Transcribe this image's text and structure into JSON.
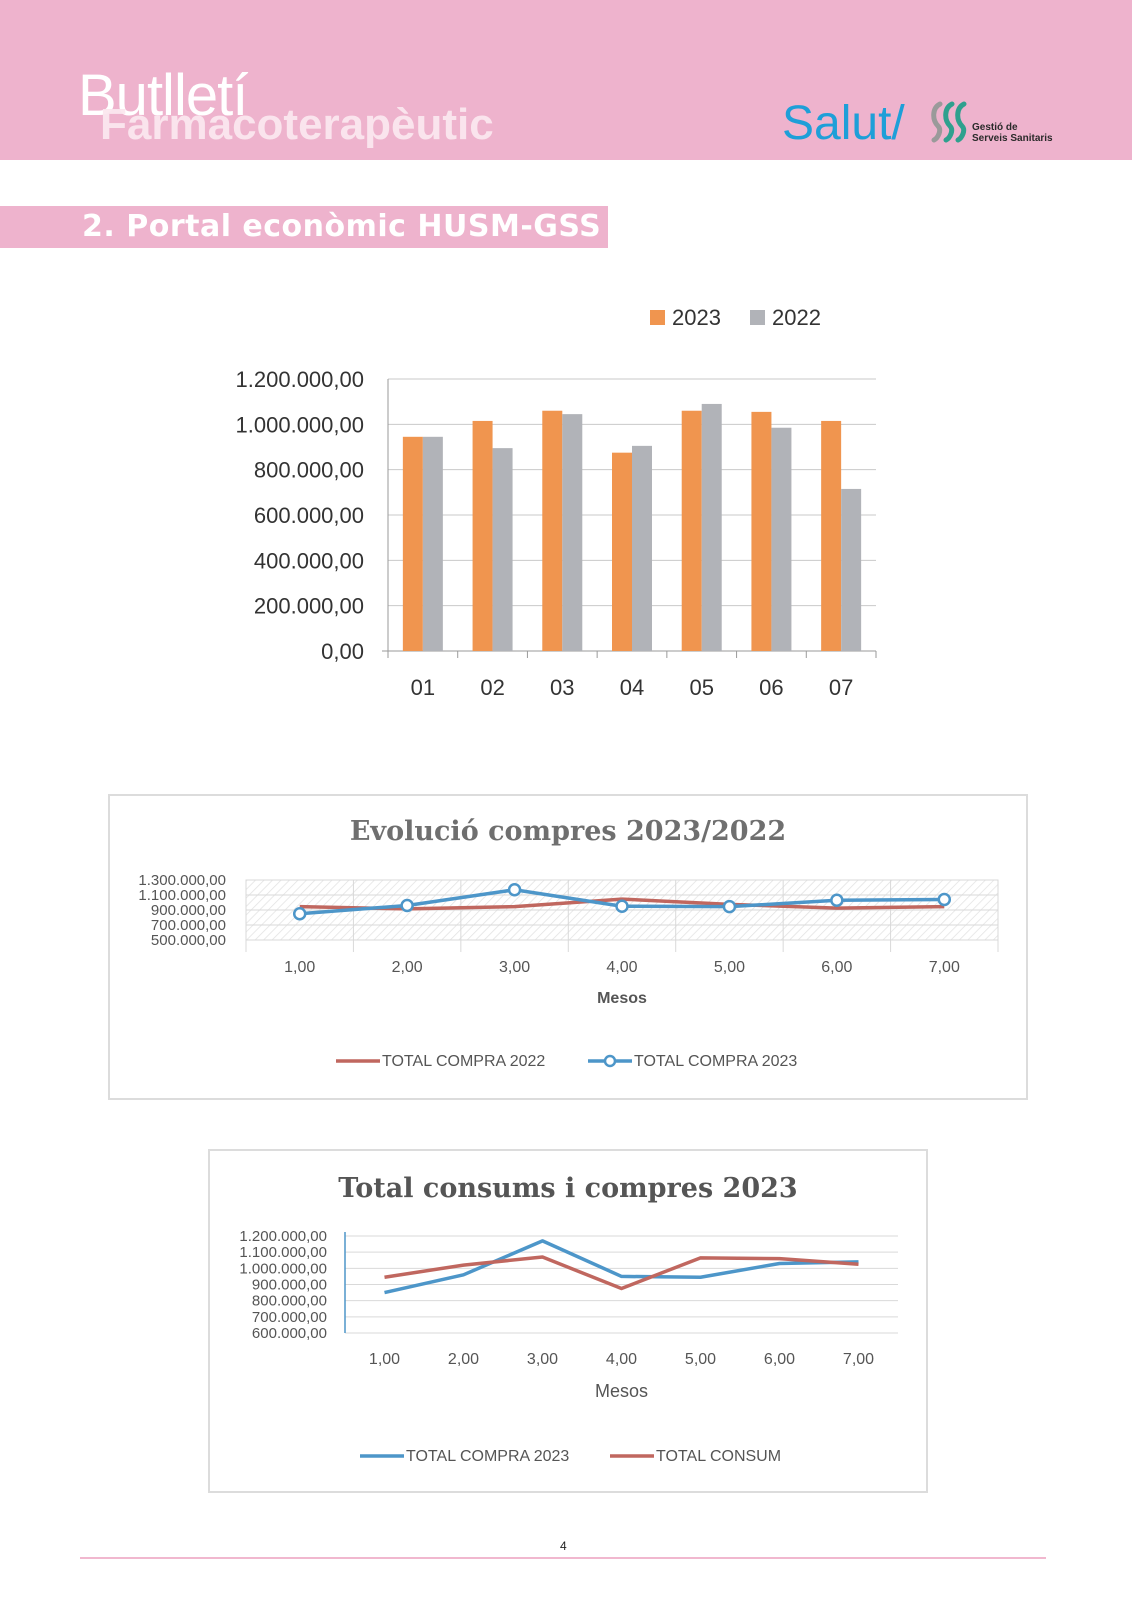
{
  "header": {
    "title_line1": "Butlletí",
    "title_line2": "Farmacoterapèutic",
    "logo": {
      "brand": "Salut/",
      "org_line1": "Gestió de",
      "org_line2": "Serveis Sanitaris",
      "mark_icon": "gss-logo-icon"
    },
    "colors": {
      "band": "#eeb3cd",
      "logo_blue": "#1e9fd8"
    }
  },
  "section": {
    "title": "2. Portal econòmic HUSM-GSS"
  },
  "footer": {
    "page_number": "4"
  },
  "chart_data": [
    {
      "type": "bar",
      "title": "",
      "categories": [
        "01",
        "02",
        "03",
        "04",
        "05",
        "06",
        "07"
      ],
      "series": [
        {
          "name": "2023",
          "color": "#f0954f",
          "values": [
            945000,
            1015000,
            1060000,
            875000,
            1060000,
            1055000,
            1015000
          ]
        },
        {
          "name": "2022",
          "color": "#b1b3b8",
          "values": [
            945000,
            895000,
            1045000,
            905000,
            1090000,
            985000,
            715000
          ]
        }
      ],
      "ylim": [
        0,
        1200000
      ],
      "yticks": [
        "0,00",
        "200.000,00",
        "400.000,00",
        "600.000,00",
        "800.000,00",
        "1.000.000,00",
        "1.200.000,00"
      ],
      "legend": "top-right",
      "grid": true
    },
    {
      "type": "line",
      "title": "Evolució compres 2023/2022",
      "xlabel": "Mesos",
      "x": [
        "1,00",
        "2,00",
        "3,00",
        "4,00",
        "5,00",
        "6,00",
        "7,00"
      ],
      "series": [
        {
          "name": "TOTAL COMPRA 2022",
          "color": "#c0675f",
          "values": [
            945000,
            915000,
            945000,
            1045000,
            975000,
            925000,
            945000
          ]
        },
        {
          "name": "TOTAL COMPRA 2023",
          "color": "#4d96c9",
          "values": [
            850000,
            960000,
            1170000,
            950000,
            945000,
            1030000,
            1040000
          ]
        }
      ],
      "ylim": [
        500000,
        1300000
      ],
      "yticks": [
        "500.000,00",
        "700.000,00",
        "900.000,00",
        "1.100.000,00",
        "1.300.000,00"
      ],
      "legend": "bottom",
      "grid": true
    },
    {
      "type": "line",
      "title": "Total consums i compres 2023",
      "xlabel": "Mesos",
      "x": [
        "1,00",
        "2,00",
        "3,00",
        "4,00",
        "5,00",
        "6,00",
        "7,00"
      ],
      "series": [
        {
          "name": "TOTAL COMPRA 2023",
          "color": "#4d96c9",
          "values": [
            850000,
            960000,
            1170000,
            950000,
            945000,
            1030000,
            1040000
          ]
        },
        {
          "name": "TOTAL CONSUM",
          "color": "#c0675f",
          "values": [
            945000,
            1020000,
            1070000,
            875000,
            1065000,
            1060000,
            1025000
          ]
        }
      ],
      "ylim": [
        600000,
        1200000
      ],
      "yticks": [
        "600.000,00",
        "700.000,00",
        "800.000,00",
        "900.000,00",
        "1.000.000,00",
        "1.100.000,00",
        "1.200.000,00"
      ],
      "legend": "bottom",
      "grid": true
    }
  ]
}
